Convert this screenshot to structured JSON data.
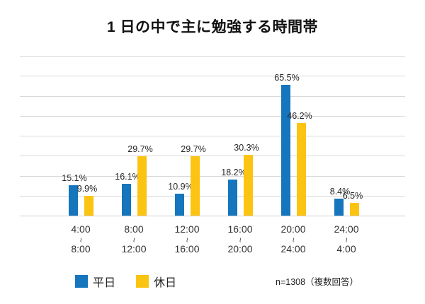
{
  "title": "1 日の中で主に勉強する時間帯",
  "footnote": "n=1308（複数回答）",
  "chart_data": {
    "type": "bar",
    "title": "1 日の中で主に勉強する時間帯",
    "unit": "%",
    "categories": [
      {
        "from": "4:00",
        "to": "8:00"
      },
      {
        "from": "8:00",
        "to": "12:00"
      },
      {
        "from": "12:00",
        "to": "16:00"
      },
      {
        "from": "16:00",
        "to": "20:00"
      },
      {
        "from": "20:00",
        "to": "24:00"
      },
      {
        "from": "24:00",
        "to": "4:00"
      }
    ],
    "range_separator": "~",
    "series": [
      {
        "name": "平日",
        "color": "#1575bd",
        "values": [
          15.1,
          16.1,
          10.9,
          18.2,
          65.5,
          8.4
        ]
      },
      {
        "name": "休日",
        "color": "#fcc412",
        "values": [
          9.9,
          29.7,
          29.7,
          30.3,
          46.2,
          6.5
        ]
      }
    ],
    "data_labels": [
      "15.1%",
      "16.1%",
      "10.9%",
      "18.2%",
      "65.5%",
      "8.4%",
      "9.9%",
      "29.7%",
      "29.7%",
      "30.3%",
      "46.2%",
      "6.5%"
    ],
    "ylim": [
      0,
      80
    ],
    "grid_step": 10,
    "grid": true,
    "legend_position": "bottom",
    "colors": {
      "weekday_blue": "#1575bd",
      "holiday_yellow": "#fcc412",
      "gridline": "#d9d9d9",
      "text": "#262626",
      "background": "#ffffff"
    }
  }
}
